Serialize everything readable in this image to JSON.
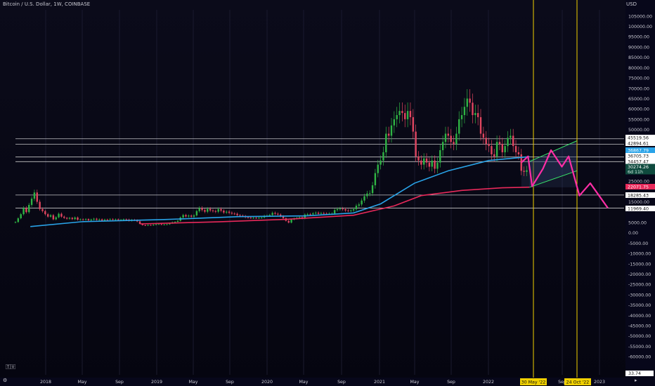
{
  "header": {
    "title": "Bitcoin / U.S. Dollar, 1W, COINBASE",
    "currency": "USD"
  },
  "colors": {
    "background": "#07071a",
    "up_candle": "#2fb344",
    "down_candle": "#e0455f",
    "ma_fast": "#29a3e8",
    "ma_slow": "#e8295a",
    "projection": "#ff2ea6",
    "channel": "#39e66b",
    "marker": "#f0d000",
    "level_line": "#e6e6e6"
  },
  "chart_data": {
    "type": "candlestick",
    "x_tick_labels": [
      "2018",
      "May",
      "Sep",
      "2019",
      "May",
      "Sep",
      "2020",
      "May",
      "Sep",
      "2021",
      "May",
      "Sep",
      "2022",
      "Sep",
      "2023"
    ],
    "y_tick_labels": [
      "105000.00",
      "100000.00",
      "95000.00",
      "90000.00",
      "85000.00",
      "80000.00",
      "75000.00",
      "70000.00",
      "65000.00",
      "60000.00",
      "55000.00",
      "50000.00",
      "25000.00",
      "15000.00",
      "5000.00",
      "0.00",
      "-5000.00",
      "-10000.00",
      "-15000.00",
      "-20000.00",
      "-25000.00",
      "-30000.00",
      "-35000.00",
      "-40000.00",
      "-45000.00",
      "-50000.00",
      "-55000.00",
      "-60000.00"
    ],
    "ylim": [
      -62000,
      108000
    ],
    "price_levels": [
      45519.56,
      42894.61,
      36705.73,
      34457.47,
      18285.43,
      11969.4
    ],
    "price_tags": [
      {
        "label": "45519.56",
        "style": "white"
      },
      {
        "label": "42894.61",
        "style": "white"
      },
      {
        "label": "36867.79",
        "style": "blue"
      },
      {
        "label": "36705.73",
        "style": "white"
      },
      {
        "label": "34457.47",
        "style": "white"
      },
      {
        "label": "30274.26",
        "sub": "6d 11h",
        "style": "green"
      },
      {
        "label": "22071.75",
        "style": "pink"
      },
      {
        "label": "18285.43",
        "style": "white"
      },
      {
        "label": "11969.40",
        "style": "white"
      }
    ],
    "current_price": 30274.26,
    "countdown": "6d 11h",
    "marker_dates": [
      "30 May '22",
      "24 Oct '22"
    ],
    "bottom_value": "33.74",
    "series": [
      {
        "name": "price",
        "points": [
          [
            0,
            5200
          ],
          [
            4,
            7000
          ],
          [
            8,
            9000
          ],
          [
            12,
            12000
          ],
          [
            16,
            10000
          ],
          [
            20,
            13500
          ],
          [
            24,
            16500
          ],
          [
            28,
            19500
          ],
          [
            32,
            15000
          ],
          [
            36,
            11500
          ],
          [
            40,
            10500
          ],
          [
            44,
            9000
          ],
          [
            48,
            7800
          ],
          [
            52,
            8500
          ],
          [
            56,
            6500
          ],
          [
            60,
            7500
          ],
          [
            64,
            9200
          ],
          [
            68,
            7800
          ],
          [
            72,
            7200
          ],
          [
            76,
            6800
          ],
          [
            80,
            7200
          ],
          [
            84,
            6600
          ],
          [
            88,
            7400
          ],
          [
            92,
            6300
          ],
          [
            96,
            6500
          ],
          [
            100,
            6300
          ],
          [
            104,
            6600
          ],
          [
            108,
            6000
          ],
          [
            112,
            6400
          ],
          [
            116,
            6800
          ],
          [
            120,
            6300
          ],
          [
            124,
            6500
          ],
          [
            128,
            5900
          ],
          [
            132,
            6400
          ],
          [
            136,
            6300
          ],
          [
            140,
            6600
          ],
          [
            144,
            6400
          ],
          [
            148,
            6500
          ],
          [
            152,
            6100
          ],
          [
            156,
            6300
          ],
          [
            160,
            6500
          ],
          [
            164,
            6400
          ],
          [
            168,
            5800
          ],
          [
            172,
            6300
          ],
          [
            176,
            6100
          ],
          [
            180,
            5500
          ],
          [
            184,
            4300
          ],
          [
            188,
            3700
          ],
          [
            192,
            3500
          ],
          [
            196,
            3800
          ],
          [
            200,
            3600
          ],
          [
            204,
            3900
          ],
          [
            208,
            4100
          ],
          [
            212,
            4200
          ],
          [
            216,
            3900
          ],
          [
            220,
            4000
          ],
          [
            224,
            4100
          ],
          [
            228,
            4600
          ],
          [
            232,
            5100
          ],
          [
            236,
            5300
          ],
          [
            240,
            5800
          ],
          [
            244,
            7400
          ],
          [
            248,
            8600
          ],
          [
            252,
            7900
          ],
          [
            256,
            8300
          ],
          [
            260,
            7800
          ],
          [
            264,
            8400
          ],
          [
            268,
            10500
          ],
          [
            272,
            12000
          ],
          [
            276,
            11000
          ],
          [
            280,
            10200
          ],
          [
            284,
            11600
          ],
          [
            288,
            10800
          ],
          [
            292,
            10500
          ],
          [
            296,
            10200
          ],
          [
            300,
            11500
          ],
          [
            304,
            10700
          ],
          [
            308,
            9800
          ],
          [
            312,
            10200
          ],
          [
            316,
            9700
          ],
          [
            320,
            9300
          ],
          [
            324,
            9200
          ],
          [
            328,
            8500
          ],
          [
            332,
            8300
          ],
          [
            336,
            8100
          ],
          [
            340,
            7500
          ],
          [
            344,
            7400
          ],
          [
            348,
            7200
          ],
          [
            352,
            7300
          ],
          [
            356,
            7200
          ],
          [
            360,
            7300
          ],
          [
            364,
            7400
          ],
          [
            368,
            8200
          ],
          [
            372,
            8300
          ],
          [
            376,
            8600
          ],
          [
            380,
            9600
          ],
          [
            384,
            9200
          ],
          [
            388,
            8800
          ],
          [
            392,
            8000
          ],
          [
            396,
            7000
          ],
          [
            400,
            5800
          ],
          [
            404,
            4900
          ],
          [
            408,
            6400
          ],
          [
            412,
            6900
          ],
          [
            416,
            7200
          ],
          [
            420,
            7500
          ],
          [
            424,
            7000
          ],
          [
            428,
            8800
          ],
          [
            432,
            9000
          ],
          [
            436,
            8900
          ],
          [
            440,
            9400
          ],
          [
            444,
            9700
          ],
          [
            448,
            9200
          ],
          [
            452,
            9500
          ],
          [
            456,
            9300
          ],
          [
            460,
            9200
          ],
          [
            464,
            9300
          ],
          [
            468,
            9300
          ],
          [
            472,
            11000
          ],
          [
            476,
            11500
          ],
          [
            480,
            11700
          ],
          [
            484,
            11400
          ],
          [
            488,
            10800
          ],
          [
            492,
            10700
          ],
          [
            496,
            10800
          ],
          [
            500,
            11400
          ],
          [
            504,
            13100
          ],
          [
            508,
            13700
          ],
          [
            512,
            15600
          ],
          [
            516,
            17700
          ],
          [
            520,
            19000
          ],
          [
            524,
            19200
          ],
          [
            528,
            23000
          ],
          [
            532,
            28900
          ],
          [
            536,
            33000
          ],
          [
            540,
            35000
          ],
          [
            544,
            39000
          ],
          [
            548,
            48000
          ],
          [
            552,
            47000
          ],
          [
            556,
            52000
          ],
          [
            560,
            55000
          ],
          [
            564,
            57000
          ],
          [
            568,
            59000
          ],
          [
            572,
            58000
          ],
          [
            576,
            55000
          ],
          [
            580,
            59000
          ],
          [
            584,
            56000
          ],
          [
            588,
            49000
          ],
          [
            592,
            37000
          ],
          [
            596,
            35000
          ],
          [
            600,
            33000
          ],
          [
            604,
            36000
          ],
          [
            608,
            34000
          ],
          [
            612,
            32000
          ],
          [
            616,
            35000
          ],
          [
            620,
            31000
          ],
          [
            624,
            34000
          ],
          [
            628,
            40000
          ],
          [
            632,
            44000
          ],
          [
            636,
            48000
          ],
          [
            640,
            47000
          ],
          [
            644,
            44000
          ],
          [
            648,
            43000
          ],
          [
            652,
            48000
          ],
          [
            656,
            55000
          ],
          [
            660,
            57000
          ],
          [
            664,
            61000
          ],
          [
            668,
            65000
          ],
          [
            672,
            63000
          ],
          [
            676,
            57000
          ],
          [
            680,
            58000
          ],
          [
            684,
            56000
          ],
          [
            688,
            48000
          ],
          [
            692,
            46000
          ],
          [
            696,
            43000
          ],
          [
            700,
            42000
          ],
          [
            704,
            38000
          ],
          [
            708,
            37000
          ],
          [
            712,
            44000
          ],
          [
            716,
            43000
          ],
          [
            720,
            39000
          ],
          [
            724,
            42000
          ],
          [
            728,
            46000
          ],
          [
            732,
            47000
          ],
          [
            736,
            42000
          ],
          [
            740,
            39000
          ],
          [
            744,
            38000
          ],
          [
            748,
            30000
          ],
          [
            752,
            29500
          ],
          [
            756,
            30274
          ]
        ]
      },
      {
        "name": "ma_fast",
        "points": [
          [
            22,
            3000
          ],
          [
            100,
            5400
          ],
          [
            220,
            6400
          ],
          [
            330,
            7800
          ],
          [
            430,
            8200
          ],
          [
            500,
            9600
          ],
          [
            540,
            14000
          ],
          [
            590,
            24000
          ],
          [
            640,
            30000
          ],
          [
            700,
            35000
          ],
          [
            760,
            36868
          ]
        ]
      },
      {
        "name": "ma_slow",
        "points": [
          [
            185,
            4300
          ],
          [
            300,
            5300
          ],
          [
            400,
            6500
          ],
          [
            500,
            8500
          ],
          [
            560,
            13000
          ],
          [
            600,
            18000
          ],
          [
            660,
            20500
          ],
          [
            720,
            21800
          ],
          [
            760,
            22072
          ]
        ]
      },
      {
        "name": "projection",
        "points": [
          [
            748,
            34000
          ],
          [
            758,
            37000
          ],
          [
            764,
            22500
          ],
          [
            780,
            31000
          ],
          [
            792,
            40000
          ],
          [
            808,
            32000
          ],
          [
            818,
            37000
          ],
          [
            834,
            18000
          ],
          [
            850,
            24000
          ],
          [
            876,
            12000
          ]
        ]
      },
      {
        "name": "channel_upper",
        "points": [
          [
            760,
            34500
          ],
          [
            830,
            44500
          ]
        ]
      },
      {
        "name": "channel_lower",
        "points": [
          [
            760,
            22000
          ],
          [
            830,
            30000
          ]
        ]
      }
    ]
  }
}
